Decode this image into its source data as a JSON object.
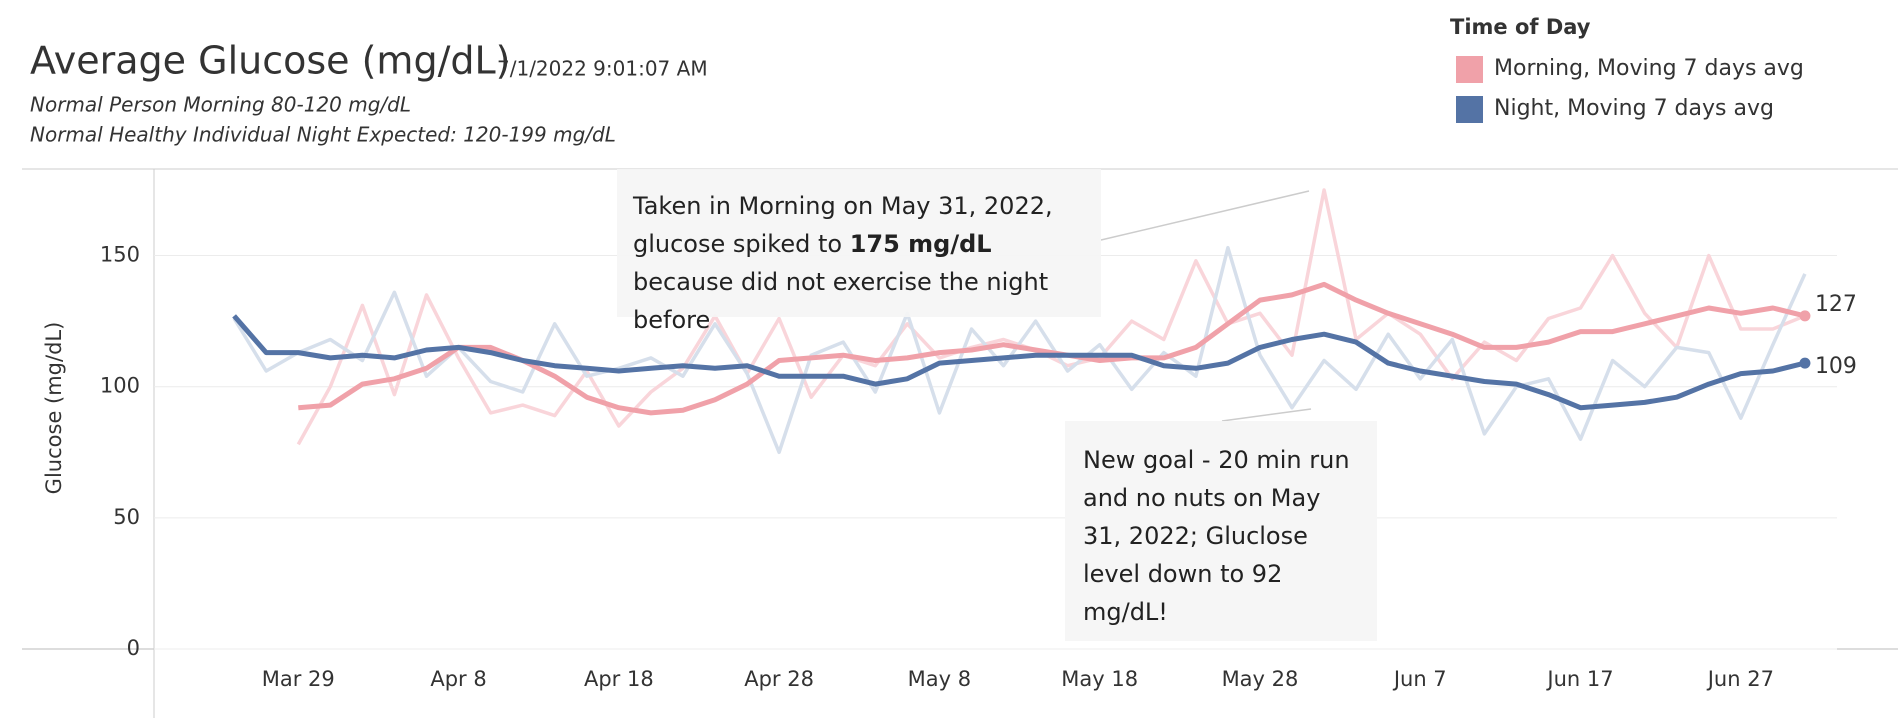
{
  "chart_data": {
    "type": "line",
    "title": "Average Glucose (mg/dL)",
    "timestamp": "7/1/2022 9:01:07 AM",
    "notes": [
      "Normal Person Morning 80-120 mg/dL",
      "Normal Healthy Individual Night Expected: 120-199 mg/dL"
    ],
    "y_label": "Glucose (mg/dL)",
    "legend_title": "Time of Day",
    "legend_position": "top-right",
    "grid": true,
    "x": [
      "2022-03-25",
      "2022-03-27",
      "2022-03-29",
      "2022-03-31",
      "2022-04-02",
      "2022-04-04",
      "2022-04-06",
      "2022-04-08",
      "2022-04-10",
      "2022-04-12",
      "2022-04-14",
      "2022-04-16",
      "2022-04-18",
      "2022-04-20",
      "2022-04-22",
      "2022-04-24",
      "2022-04-26",
      "2022-04-28",
      "2022-04-30",
      "2022-05-02",
      "2022-05-04",
      "2022-05-06",
      "2022-05-08",
      "2022-05-10",
      "2022-05-12",
      "2022-05-14",
      "2022-05-16",
      "2022-05-18",
      "2022-05-20",
      "2022-05-22",
      "2022-05-24",
      "2022-05-26",
      "2022-05-28",
      "2022-05-30",
      "2022-06-01",
      "2022-06-03",
      "2022-06-05",
      "2022-06-07",
      "2022-06-09",
      "2022-06-11",
      "2022-06-13",
      "2022-06-15",
      "2022-06-17",
      "2022-06-19",
      "2022-06-21",
      "2022-06-23",
      "2022-06-25",
      "2022-06-27",
      "2022-06-29",
      "2022-07-01"
    ],
    "xlim": [
      "2022-03-20",
      "2022-07-03"
    ],
    "xticks": [
      {
        "value": "2022-03-29",
        "label": "Mar 29"
      },
      {
        "value": "2022-04-08",
        "label": "Apr 8"
      },
      {
        "value": "2022-04-18",
        "label": "Apr 18"
      },
      {
        "value": "2022-04-28",
        "label": "Apr 28"
      },
      {
        "value": "2022-05-08",
        "label": "May 8"
      },
      {
        "value": "2022-05-18",
        "label": "May 18"
      },
      {
        "value": "2022-05-28",
        "label": "May 28"
      },
      {
        "value": "2022-06-07",
        "label": "Jun 7"
      },
      {
        "value": "2022-06-17",
        "label": "Jun 17"
      },
      {
        "value": "2022-06-27",
        "label": "Jun 27"
      }
    ],
    "ylim": [
      0,
      183
    ],
    "yticks": [
      0,
      50,
      100,
      150
    ],
    "raw_series": [
      {
        "color": "#f9d5da",
        "values": [
          null,
          null,
          78,
          100,
          131,
          97,
          135,
          111,
          90,
          93,
          89,
          106,
          85,
          98,
          107,
          127,
          105,
          126,
          96,
          112,
          108,
          124,
          111,
          115,
          118,
          114,
          108,
          111,
          125,
          118,
          148,
          124,
          128,
          112,
          175,
          118,
          128,
          120,
          103,
          117,
          110,
          126,
          130,
          150,
          128,
          115,
          150,
          122,
          122,
          127
        ]
      },
      {
        "color": "#d6dfeb",
        "values": [
          126,
          106,
          113,
          118,
          110,
          136,
          104,
          115,
          102,
          98,
          124,
          104,
          107,
          111,
          104,
          124,
          105,
          75,
          112,
          117,
          98,
          128,
          90,
          122,
          108,
          125,
          106,
          116,
          99,
          113,
          104,
          153,
          112,
          92,
          110,
          99,
          120,
          103,
          118,
          82,
          100,
          103,
          80,
          110,
          100,
          115,
          113,
          88,
          116,
          143
        ]
      }
    ],
    "series": [
      {
        "name": "Morning, Moving 7 days avg",
        "color": "#f0a1a9",
        "values": [
          null,
          null,
          92,
          93,
          101,
          103,
          107,
          115,
          115,
          110,
          104,
          96,
          92,
          90,
          91,
          95,
          101,
          110,
          111,
          112,
          110,
          111,
          113,
          114,
          116,
          114,
          112,
          110,
          111,
          111,
          115,
          124,
          133,
          135,
          139,
          133,
          128,
          124,
          120,
          115,
          115,
          117,
          121,
          121,
          124,
          127,
          130,
          128,
          130,
          127
        ]
      },
      {
        "name": "Night, Moving 7 days avg",
        "color": "#5473a5",
        "values": [
          127,
          113,
          113,
          111,
          112,
          111,
          114,
          115,
          113,
          110,
          108,
          107,
          106,
          107,
          108,
          107,
          108,
          104,
          104,
          104,
          101,
          103,
          109,
          110,
          111,
          112,
          112,
          112,
          112,
          108,
          107,
          109,
          115,
          118,
          120,
          117,
          109,
          106,
          104,
          102,
          101,
          97,
          92,
          93,
          94,
          96,
          101,
          105,
          106,
          109
        ]
      }
    ],
    "annotations": [
      {
        "parts": [
          "Taken in Morning on May 31, 2022, glucose spiked to ",
          "175 mg/dL",
          " because did not exercise the night before"
        ]
      },
      {
        "parts": [
          "New goal - 20 min run and no nuts on May 31, 2022; Gluclose level down to 92 mg/dL!"
        ]
      }
    ]
  }
}
